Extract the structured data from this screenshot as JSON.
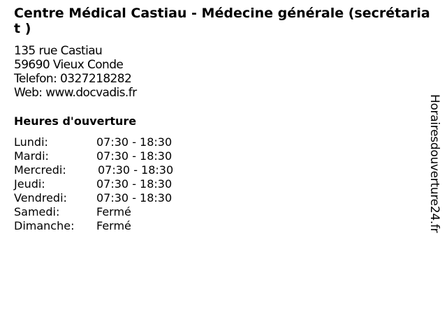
{
  "title": "Centre Médical Castiau - Médecine générale (secrétariat )",
  "address": {
    "street": "135 rue Castiau",
    "city": "59690 Vieux Conde",
    "phone": "Telefon: 0327218282",
    "web": "Web: www.docvadis.fr"
  },
  "hours_heading": "Heures d'ouverture",
  "hours": [
    {
      "day": "Lundi:",
      "time": "07:30 - 18:30"
    },
    {
      "day": "Mardi:",
      "time": "07:30 - 18:30"
    },
    {
      "day": "Mercredi:",
      "time": "07:30 - 18:30"
    },
    {
      "day": "Jeudi:",
      "time": "07:30 - 18:30"
    },
    {
      "day": "Vendredi:",
      "time": "07:30 - 18:30"
    },
    {
      "day": "Samedi:",
      "time": "Fermé"
    },
    {
      "day": "Dimanche:",
      "time": "Fermé"
    }
  ],
  "watermark": "Horairesdouverture24.fr"
}
